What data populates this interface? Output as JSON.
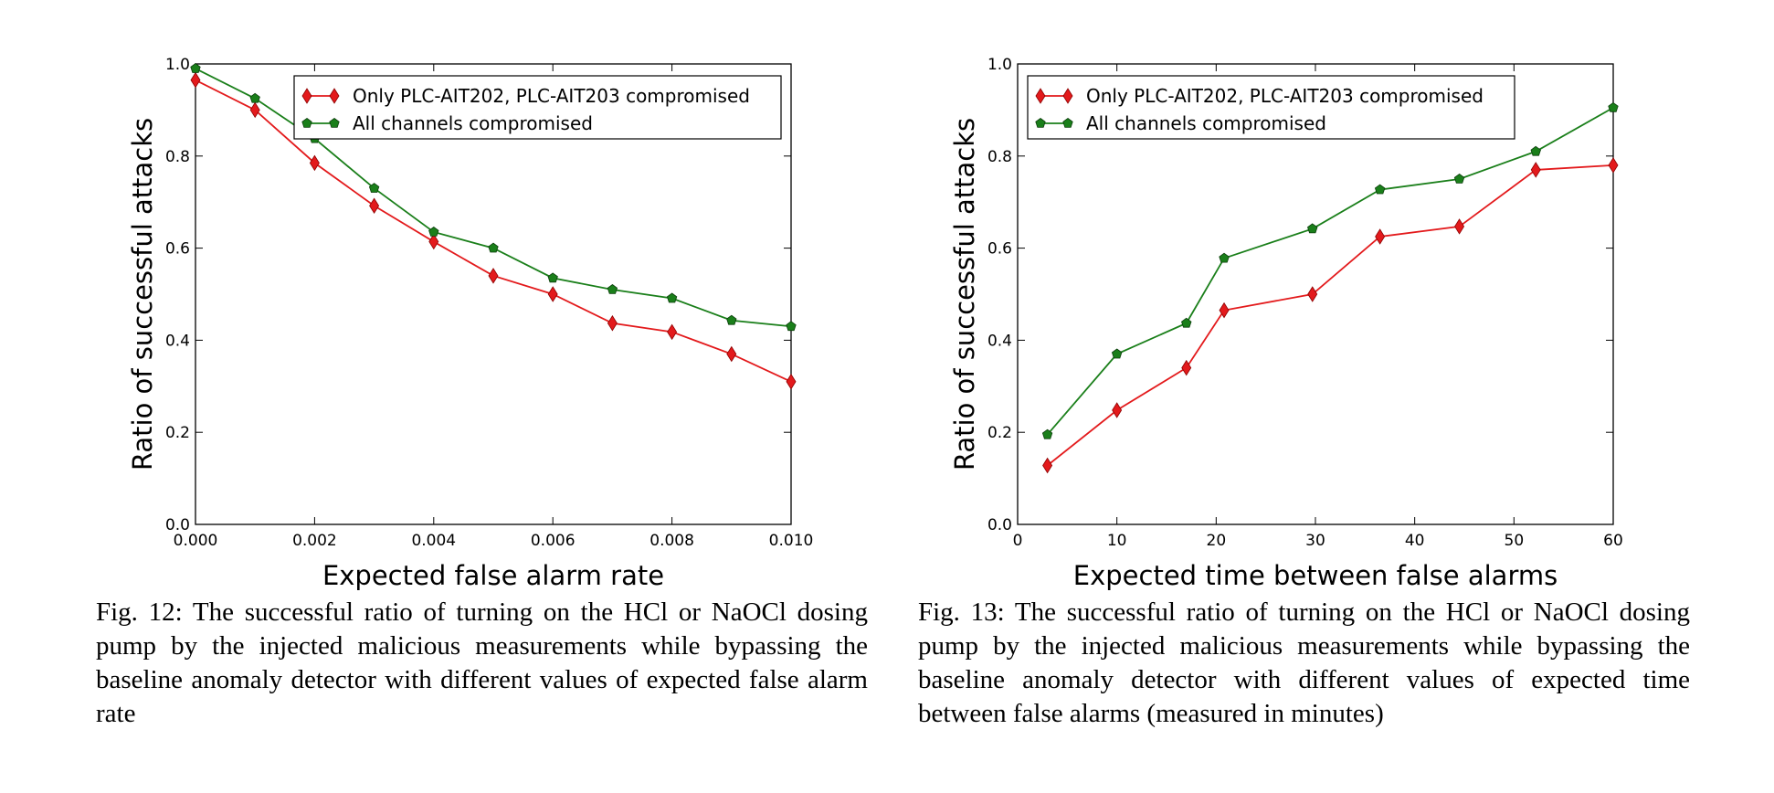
{
  "chart_data": [
    {
      "type": "line",
      "xlabel": "Expected false alarm rate",
      "ylabel": "Ratio of successful attacks",
      "xlim": [
        0,
        0.01
      ],
      "ylim": [
        0,
        1
      ],
      "xticks": [
        "0.000",
        "0.002",
        "0.004",
        "0.006",
        "0.008",
        "0.010"
      ],
      "yticks": [
        "0.0",
        "0.2",
        "0.4",
        "0.6",
        "0.8",
        "1.0"
      ],
      "legend_position": "top-right",
      "grid": false,
      "x": [
        0,
        0.001,
        0.002,
        0.003,
        0.004,
        0.005,
        0.006,
        0.007,
        0.008,
        0.009,
        0.01
      ],
      "series": [
        {
          "name": "Only PLC-AIT202, PLC-AIT203 compromised",
          "color": "#e31a1c",
          "marker": "diamond",
          "values": [
            0.965,
            0.9,
            0.785,
            0.692,
            0.614,
            0.54,
            0.5,
            0.437,
            0.418,
            0.37,
            0.31
          ]
        },
        {
          "name": "All channels compromised",
          "color": "#1a7f1a",
          "marker": "pentagon",
          "values": [
            0.99,
            0.925,
            0.838,
            0.73,
            0.635,
            0.6,
            0.535,
            0.51,
            0.491,
            0.443,
            0.43
          ]
        }
      ],
      "caption": "Fig. 12: The successful ratio of turning on the HCl or NaOCl dosing pump by the injected malicious measurements while bypassing the baseline anomaly detector with different values of expected false alarm rate"
    },
    {
      "type": "line",
      "xlabel": "Expected time between false alarms",
      "ylabel": "Ratio of successful attacks",
      "xlim": [
        0,
        60
      ],
      "ylim": [
        0,
        1
      ],
      "xticks": [
        "0",
        "10",
        "20",
        "30",
        "40",
        "50",
        "60"
      ],
      "yticks": [
        "0.0",
        "0.2",
        "0.4",
        "0.6",
        "0.8",
        "1.0"
      ],
      "legend_position": "top-left",
      "grid": false,
      "x": [
        3,
        10,
        17,
        20.8,
        29.7,
        36.5,
        44.5,
        52.2,
        60
      ],
      "series": [
        {
          "name": "Only PLC-AIT202, PLC-AIT203 compromised",
          "color": "#e31a1c",
          "marker": "diamond",
          "values": [
            0.128,
            0.248,
            0.34,
            0.465,
            0.5,
            0.625,
            0.647,
            0.77,
            0.78
          ]
        },
        {
          "name": "All channels compromised",
          "color": "#1a7f1a",
          "marker": "pentagon",
          "values": [
            0.195,
            0.37,
            0.437,
            0.578,
            0.642,
            0.727,
            0.75,
            0.81,
            0.905
          ]
        }
      ],
      "caption": "Fig. 13: The successful ratio of turning on the HCl or NaOCl dosing pump by the injected malicious measurements while bypassing the baseline anomaly detector with different values of expected time between false alarms (measured in minutes)"
    }
  ]
}
